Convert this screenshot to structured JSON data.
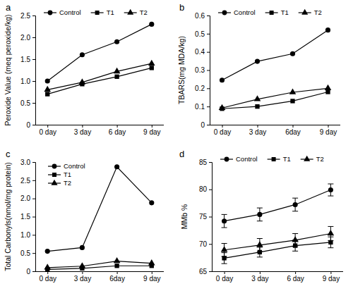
{
  "chart_data": [
    {
      "type": "line",
      "title": "a",
      "y_label": "Peroxide Value (meq peroxide/kg)",
      "categories": [
        "0 day",
        "3 day",
        "6 day",
        "9 day"
      ],
      "series": [
        {
          "name": "Control",
          "color": "#000000",
          "marker": "circle",
          "values": [
            1.0,
            1.6,
            1.9,
            2.3
          ]
        },
        {
          "name": "T1",
          "color": "#000000",
          "marker": "square",
          "values": [
            0.7,
            0.93,
            1.1,
            1.3
          ]
        },
        {
          "name": "T2",
          "color": "#000000",
          "marker": "triangle",
          "values": [
            0.8,
            0.97,
            1.22,
            1.4
          ]
        }
      ],
      "ylim": [
        0,
        2.5
      ],
      "yticks": [
        0,
        0.5,
        {
          "value": 1,
          "label": "1.0"
        },
        1.5,
        {
          "value": 2,
          "label": "2.0"
        },
        2.5
      ],
      "legend": "upper center"
    },
    {
      "type": "line",
      "title": "b",
      "y_label": "TBARS(mg MDA/kg)",
      "categories": [
        "0 day",
        "3 day",
        "6day",
        "9 day"
      ],
      "series": [
        {
          "name": "Control",
          "color": "#000000",
          "marker": "circle",
          "values": [
            0.245,
            0.348,
            0.39,
            0.52
          ]
        },
        {
          "name": "T1",
          "color": "#000000",
          "marker": "square",
          "values": [
            0.088,
            0.1,
            0.13,
            0.18
          ]
        },
        {
          "name": "T2",
          "color": "#000000",
          "marker": "triangle",
          "values": [
            0.092,
            0.14,
            0.178,
            0.2
          ]
        }
      ],
      "ylim": [
        0,
        0.6
      ],
      "yticks": [
        0,
        0.1,
        0.2,
        0.3,
        0.4,
        0.5,
        0.6
      ],
      "legend": "upper center"
    },
    {
      "type": "line",
      "title": "c",
      "y_label": "Total Carbonyls(nmol/mg protein)",
      "categories": [
        "0 day",
        "3 day",
        "6day",
        "9 day"
      ],
      "series": [
        {
          "name": "Control",
          "color": "#000000",
          "marker": "circle",
          "values": [
            0.55,
            0.65,
            2.87,
            1.88
          ]
        },
        {
          "name": "T1",
          "color": "#000000",
          "marker": "square",
          "values": [
            0.05,
            0.08,
            0.15,
            0.15
          ]
        },
        {
          "name": "T2",
          "color": "#000000",
          "marker": "triangle",
          "values": [
            0.1,
            0.14,
            0.28,
            0.22
          ]
        }
      ],
      "ylim": [
        0,
        3
      ],
      "yticks": [
        0,
        0.5,
        {
          "value": 1,
          "label": "1.0"
        },
        1.5,
        {
          "value": 2,
          "label": "2.0"
        },
        2.5,
        {
          "value": 3,
          "label": "3.0"
        }
      ],
      "legend": "upper left"
    },
    {
      "type": "line",
      "title": "d",
      "y_label": "MMb %",
      "categories": [
        "0 day",
        "3 day",
        "6 day",
        "9 day"
      ],
      "series": [
        {
          "name": "Control",
          "color": "#000000",
          "marker": "circle",
          "values": [
            74.2,
            75.4,
            77.2,
            79.9
          ],
          "errors": [
            1.2,
            1.2,
            1.2,
            1.1
          ]
        },
        {
          "name": "T1",
          "color": "#000000",
          "marker": "square",
          "values": [
            67.4,
            68.5,
            69.7,
            70.3
          ],
          "errors": [
            1.0,
            0.9,
            1.0,
            1.0
          ]
        },
        {
          "name": "T2",
          "color": "#000000",
          "marker": "triangle",
          "values": [
            68.9,
            69.8,
            70.7,
            71.9
          ],
          "errors": [
            1.2,
            1.2,
            1.2,
            1.3
          ]
        }
      ],
      "ylim": [
        65,
        85
      ],
      "yticks": [
        65,
        70,
        75,
        80,
        85
      ],
      "legend": "upper center"
    }
  ]
}
